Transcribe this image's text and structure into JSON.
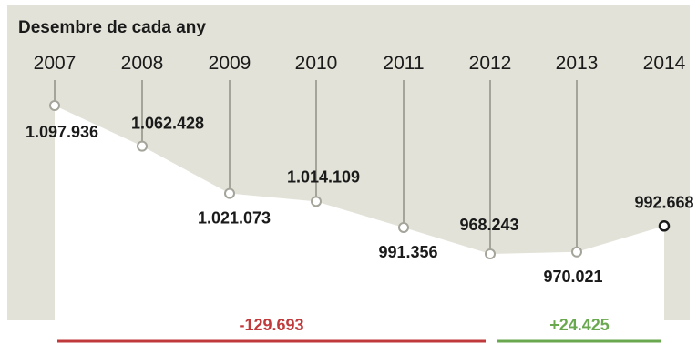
{
  "subtitle": "Desembre de cada any",
  "colors": {
    "background": "#e2e2d8",
    "area": "#ffffff",
    "line": "#a4a49a",
    "marker_stroke": "#a4a49a",
    "last_marker_stroke": "#1a1a1a",
    "negative": "#c0393b",
    "positive": "#6aa84f"
  },
  "chart_data": {
    "type": "area",
    "title": "Desembre de cada any",
    "xlabel": "",
    "ylabel": "",
    "categories": [
      "2007",
      "2008",
      "2009",
      "2010",
      "2011",
      "2012",
      "2013",
      "2014"
    ],
    "series": [
      {
        "values": [
          1097936,
          1062428,
          1021073,
          1014109,
          991356,
          968243,
          970021,
          992668
        ],
        "labels": [
          "1.097.936",
          "1.062.428",
          "1.021.073",
          "1.014.109",
          "991.356",
          "968.243",
          "970.021",
          "992.668"
        ]
      }
    ],
    "grid": false,
    "legend": "none",
    "annotations": [
      {
        "text": "-129.693",
        "from": "2007",
        "to": "2012",
        "color": "negative"
      },
      {
        "text": "+24.425",
        "from": "2012",
        "to": "2014",
        "color": "positive"
      }
    ]
  }
}
